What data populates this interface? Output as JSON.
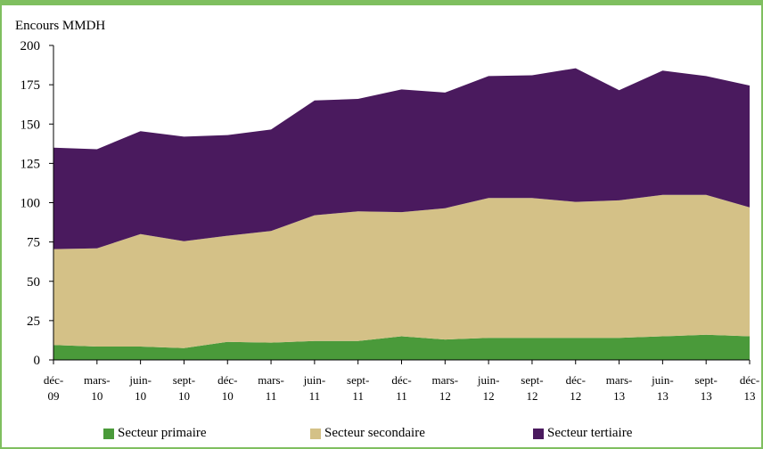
{
  "chart_data": {
    "type": "area",
    "stacked": true,
    "ylabel": "Encours MMDH",
    "ylim": [
      0,
      200
    ],
    "yticks": [
      0,
      25,
      50,
      75,
      100,
      125,
      150,
      175,
      200
    ],
    "categories": [
      [
        "déc-",
        "09"
      ],
      [
        "mars-",
        "10"
      ],
      [
        "juin-",
        "10"
      ],
      [
        "sept-",
        "10"
      ],
      [
        "déc-",
        "10"
      ],
      [
        "mars-",
        "11"
      ],
      [
        "juin-",
        "11"
      ],
      [
        "sept-",
        "11"
      ],
      [
        "déc-",
        "11"
      ],
      [
        "mars-",
        "12"
      ],
      [
        "juin-",
        "12"
      ],
      [
        "sept-",
        "12"
      ],
      [
        "déc-",
        "12"
      ],
      [
        "mars-",
        "13"
      ],
      [
        "juin-",
        "13"
      ],
      [
        "sept-",
        "13"
      ],
      [
        "déc-",
        "13"
      ]
    ],
    "series": [
      {
        "name": "Secteur primaire",
        "color": "#4a9a3a",
        "values": [
          9.5,
          8.5,
          8.5,
          7.5,
          11.5,
          11,
          12,
          12,
          15,
          13,
          14,
          14,
          14,
          14,
          15,
          16,
          15
        ]
      },
      {
        "name": "Secteur secondaire",
        "color": "#d4c187",
        "values": [
          61,
          62.5,
          71.5,
          68,
          67.5,
          71,
          80,
          82.5,
          79,
          83.5,
          89,
          89,
          86.5,
          87.5,
          90,
          89,
          82
        ]
      },
      {
        "name": "Secteur tertiaire",
        "color": "#4a1a5e",
        "values": [
          64.5,
          63,
          65.5,
          66.5,
          64,
          64.5,
          73,
          71.5,
          78,
          73.5,
          77.5,
          78,
          85,
          70,
          79,
          75.5,
          77.5
        ]
      }
    ],
    "grid": false,
    "legend_position": "bottom"
  }
}
